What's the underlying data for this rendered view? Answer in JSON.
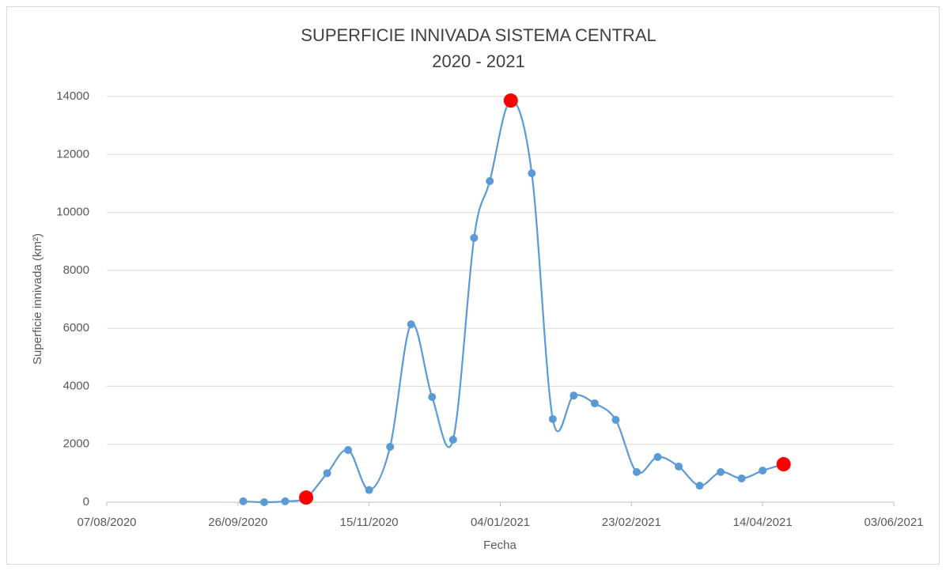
{
  "chart_data": {
    "type": "line",
    "title": "SUPERFICIE INNIVADA SISTEMA CENTRAL",
    "subtitle": "2020 - 2021",
    "x_label": "Fecha",
    "y_label": "Superficie innivada (km²)",
    "x": [
      "28/09/2020",
      "06/10/2020",
      "14/10/2020",
      "22/10/2020",
      "30/10/2020",
      "07/11/2020",
      "15/11/2020",
      "23/11/2020",
      "01/12/2020",
      "09/12/2020",
      "17/12/2020",
      "25/12/2020",
      "31/12/2020",
      "08/01/2021",
      "16/01/2021",
      "24/01/2021",
      "01/02/2021",
      "09/02/2021",
      "17/02/2021",
      "25/02/2021",
      "05/03/2021",
      "13/03/2021",
      "21/03/2021",
      "29/03/2021",
      "06/04/2021",
      "14/04/2021",
      "22/04/2021"
    ],
    "values": [
      30,
      0,
      30,
      160,
      1000,
      1800,
      420,
      1910,
      6140,
      3630,
      2160,
      9120,
      11080,
      13860,
      11350,
      2870,
      3680,
      3410,
      2840,
      1040,
      1560,
      1230,
      570,
      1040,
      820,
      1090,
      1310
    ],
    "color": "#5b9bd5",
    "highlight_points": [
      3,
      13,
      26
    ],
    "highlight_color": "#ff0000",
    "xlim": [
      "07/08/2020",
      "03/06/2021"
    ],
    "xticks": [
      "07/08/2020",
      "26/09/2020",
      "15/11/2020",
      "04/01/2021",
      "23/02/2021",
      "14/04/2021",
      "03/06/2021"
    ],
    "ylim": [
      0,
      14000
    ],
    "yticks": [
      0,
      2000,
      4000,
      6000,
      8000,
      10000,
      12000,
      14000
    ],
    "grid": true
  }
}
